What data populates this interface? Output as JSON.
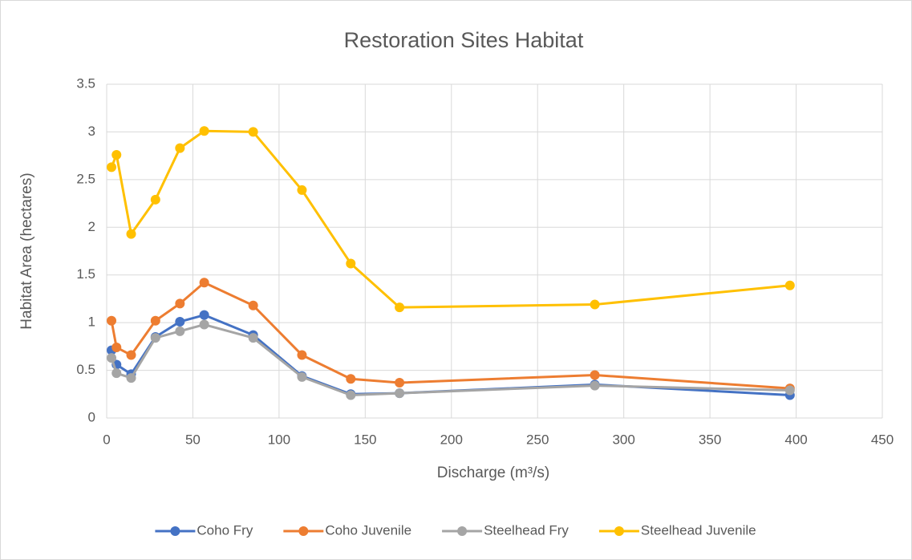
{
  "chart_data": {
    "type": "line",
    "title": "Restoration Sites Habitat",
    "x_label": "Discharge (m³/s)",
    "y_label": "Habitat Area (hectares)",
    "x": [
      2.8,
      5.7,
      14.2,
      28.3,
      42.5,
      56.6,
      85,
      113.3,
      141.6,
      169.9,
      283.2,
      396.4
    ],
    "series": [
      {
        "name": "Coho Fry",
        "color": "#4472c4",
        "values": [
          0.71,
          0.56,
          0.46,
          0.85,
          1.01,
          1.08,
          0.87,
          0.44,
          0.25,
          0.26,
          0.35,
          0.24
        ]
      },
      {
        "name": "Coho Juvenile",
        "color": "#ed7d31",
        "values": [
          1.02,
          0.74,
          0.66,
          1.02,
          1.2,
          1.42,
          1.18,
          0.66,
          0.41,
          0.37,
          0.45,
          0.31
        ]
      },
      {
        "name": "Steelhead Fry",
        "color": "#a5a5a5",
        "values": [
          0.63,
          0.47,
          0.42,
          0.84,
          0.91,
          0.98,
          0.84,
          0.43,
          0.24,
          0.26,
          0.34,
          0.29
        ]
      },
      {
        "name": "Steelhead Juvenile",
        "color": "#ffc000",
        "values": [
          2.63,
          2.76,
          1.93,
          2.29,
          2.83,
          3.01,
          3.0,
          2.39,
          1.62,
          1.16,
          1.19,
          1.39
        ]
      }
    ],
    "xlim": [
      0,
      450
    ],
    "xticks": [
      0,
      50,
      100,
      150,
      200,
      250,
      300,
      350,
      400,
      450
    ],
    "ylim": [
      0,
      3.5
    ],
    "yticks": [
      0,
      0.5,
      1,
      1.5,
      2,
      2.5,
      3,
      3.5
    ],
    "grid": true,
    "legend": "bottom"
  }
}
